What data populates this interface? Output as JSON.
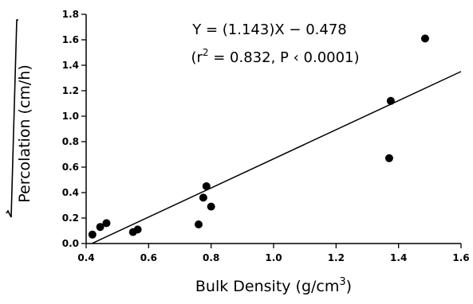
{
  "chart_data": {
    "type": "scatter",
    "xlabel_main": "Bulk Density (g/cm",
    "xlabel_sup": "3",
    "xlabel_end": ")",
    "ylabel": "Percolation (cm/h)",
    "xlim": [
      0.4,
      1.6
    ],
    "ylim": [
      0.0,
      1.8
    ],
    "xticks": [
      0.4,
      0.6,
      0.8,
      1.0,
      1.2,
      1.4,
      1.6
    ],
    "yticks": [
      0.0,
      0.2,
      0.4,
      0.6,
      0.8,
      1.0,
      1.2,
      1.4,
      1.6,
      1.8
    ],
    "xtick_labels": [
      "0.4",
      "0.6",
      "0.8",
      "1.0",
      "1.2",
      "1.4",
      "1.6"
    ],
    "ytick_labels": [
      "0.0",
      "0.2",
      "0.4",
      "0.6",
      "0.8",
      "1.0",
      "1.2",
      "1.4",
      "1.6",
      "1.8"
    ],
    "grid": false,
    "points": [
      {
        "x": 0.42,
        "y": 0.07
      },
      {
        "x": 0.445,
        "y": 0.13
      },
      {
        "x": 0.465,
        "y": 0.16
      },
      {
        "x": 0.55,
        "y": 0.09
      },
      {
        "x": 0.565,
        "y": 0.11
      },
      {
        "x": 0.76,
        "y": 0.15
      },
      {
        "x": 0.775,
        "y": 0.36
      },
      {
        "x": 0.785,
        "y": 0.45
      },
      {
        "x": 0.8,
        "y": 0.29
      },
      {
        "x": 1.37,
        "y": 0.67
      },
      {
        "x": 1.375,
        "y": 1.12
      },
      {
        "x": 1.485,
        "y": 1.61
      }
    ],
    "fit_line": {
      "slope": 1.143,
      "intercept": -0.478
    },
    "annotation": {
      "equation": "Y = (1.143)X − 0.478",
      "stats_open": "(r",
      "stats_sup": "2",
      "stats_rest": " = 0.832, P ‹ 0.0001)"
    }
  }
}
